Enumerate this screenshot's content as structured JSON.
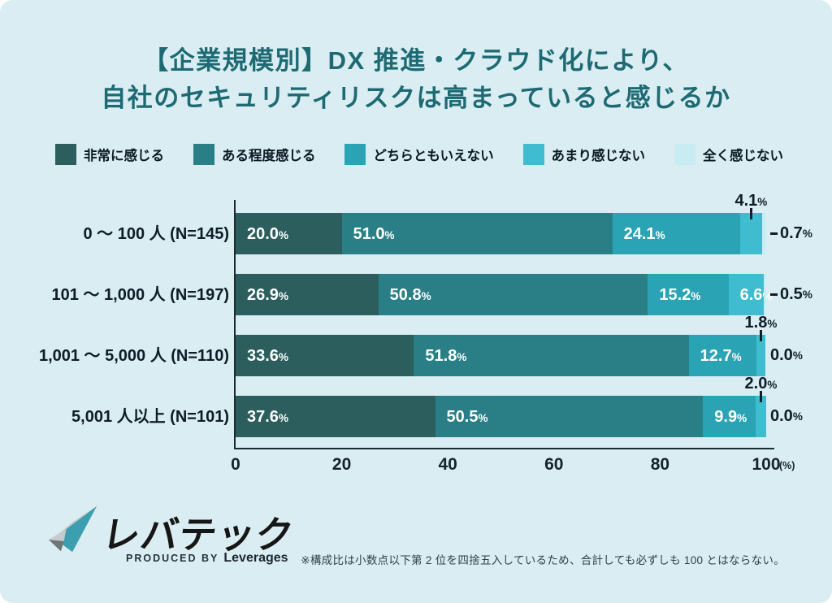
{
  "page": {
    "background": "#d9edf2"
  },
  "title": {
    "line1": "【企業規模別】DX 推進・クラウド化により、",
    "line2": "自社のセキュリティリスクは高まっていると感じるか",
    "color": "#1e6a73"
  },
  "chart_data": {
    "type": "stacked-bar-horizontal",
    "categories": [
      "0 〜 100 人 (N=145)",
      "101 〜 1,000 人 (N=197)",
      "1,001 〜 5,000 人 (N=110)",
      "5,001 人以上 (N=101)"
    ],
    "series": [
      {
        "name": "非常に感じる",
        "color": "#2c5e5e",
        "values": [
          20.0,
          26.9,
          33.6,
          37.6
        ]
      },
      {
        "name": "ある程度感じる",
        "color": "#2a7f87",
        "values": [
          51.0,
          50.8,
          51.8,
          50.5
        ]
      },
      {
        "name": "どちらともいえない",
        "color": "#2aa4b5",
        "values": [
          24.1,
          15.2,
          12.7,
          9.9
        ]
      },
      {
        "name": "あまり感じない",
        "color": "#3fbcd0",
        "values": [
          4.1,
          6.6,
          1.8,
          2.0
        ]
      },
      {
        "name": "全く感じない",
        "color": "#c9ecf2",
        "values": [
          0.7,
          0.5,
          0.0,
          0.0
        ]
      }
    ],
    "value_label_placement": [
      [
        "inside",
        "inside",
        "inside",
        "above",
        "right"
      ],
      [
        "inside",
        "inside",
        "inside",
        "inside",
        "right"
      ],
      [
        "inside",
        "inside",
        "inside",
        "above",
        "right"
      ],
      [
        "inside",
        "inside",
        "inside",
        "above",
        "right"
      ]
    ],
    "xlim": [
      0,
      100
    ],
    "x_ticks": [
      0,
      20,
      40,
      60,
      80,
      100
    ],
    "x_unit": "(%)",
    "legend_position": "top",
    "grid": false,
    "axis_color": "#1c2b33"
  },
  "footnote": "※構成比は小数点以下第 2 位を四捨五入しているため、合計しても必ずしも 100 とはならない。",
  "logo": {
    "brand": "レバテック",
    "produced_by": "PRODUCED BY",
    "company": "Leverages",
    "mark_teal": "#3b9fb0",
    "mark_gray_light": "#c7cbcd",
    "mark_gray_dark": "#6f7577"
  }
}
